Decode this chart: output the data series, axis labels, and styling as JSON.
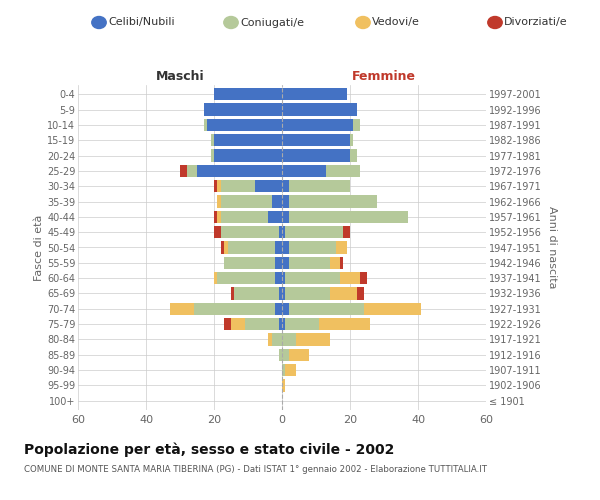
{
  "age_groups": [
    "100+",
    "95-99",
    "90-94",
    "85-89",
    "80-84",
    "75-79",
    "70-74",
    "65-69",
    "60-64",
    "55-59",
    "50-54",
    "45-49",
    "40-44",
    "35-39",
    "30-34",
    "25-29",
    "20-24",
    "15-19",
    "10-14",
    "5-9",
    "0-4"
  ],
  "birth_years": [
    "≤ 1901",
    "1902-1906",
    "1907-1911",
    "1912-1916",
    "1917-1921",
    "1922-1926",
    "1927-1931",
    "1932-1936",
    "1937-1941",
    "1942-1946",
    "1947-1951",
    "1952-1956",
    "1957-1961",
    "1962-1966",
    "1967-1971",
    "1972-1976",
    "1977-1981",
    "1982-1986",
    "1987-1991",
    "1992-1996",
    "1997-2001"
  ],
  "male": {
    "celibi": [
      0,
      0,
      0,
      0,
      0,
      1,
      2,
      1,
      2,
      2,
      2,
      1,
      4,
      3,
      8,
      25,
      20,
      20,
      22,
      23,
      20
    ],
    "coniugati": [
      0,
      0,
      0,
      1,
      3,
      10,
      24,
      13,
      17,
      15,
      14,
      17,
      14,
      15,
      10,
      3,
      1,
      1,
      1,
      0,
      0
    ],
    "vedovi": [
      0,
      0,
      0,
      0,
      1,
      4,
      7,
      0,
      1,
      0,
      1,
      0,
      1,
      1,
      1,
      0,
      0,
      0,
      0,
      0,
      0
    ],
    "divorziati": [
      0,
      0,
      0,
      0,
      0,
      2,
      0,
      1,
      0,
      0,
      1,
      2,
      1,
      0,
      1,
      2,
      0,
      0,
      0,
      0,
      0
    ]
  },
  "female": {
    "nubili": [
      0,
      0,
      0,
      0,
      0,
      1,
      2,
      1,
      1,
      2,
      2,
      1,
      2,
      2,
      2,
      13,
      20,
      20,
      21,
      22,
      19
    ],
    "coniugate": [
      0,
      0,
      1,
      2,
      4,
      10,
      22,
      13,
      16,
      12,
      14,
      17,
      35,
      26,
      18,
      10,
      2,
      1,
      2,
      0,
      0
    ],
    "vedove": [
      0,
      1,
      3,
      6,
      10,
      15,
      17,
      8,
      6,
      3,
      3,
      0,
      0,
      0,
      0,
      0,
      0,
      0,
      0,
      0,
      0
    ],
    "divorziate": [
      0,
      0,
      0,
      0,
      0,
      0,
      0,
      2,
      2,
      1,
      0,
      2,
      0,
      0,
      0,
      0,
      0,
      0,
      0,
      0,
      0
    ]
  },
  "colors": {
    "celibi_nubili": "#4472c4",
    "coniugati": "#b5c99a",
    "vedovi": "#f0c060",
    "divorziati": "#c0392b"
  },
  "xlim": 60,
  "title": "Popolazione per età, sesso e stato civile - 2002",
  "subtitle": "COMUNE DI MONTE SANTA MARIA TIBERINA (PG) - Dati ISTAT 1° gennaio 2002 - Elaborazione TUTTITALIA.IT",
  "ylabel_left": "Fasce di età",
  "ylabel_right": "Anni di nascita",
  "header_left": "Maschi",
  "header_right": "Femmine",
  "bg_color": "#ffffff",
  "grid_color": "#cccccc"
}
